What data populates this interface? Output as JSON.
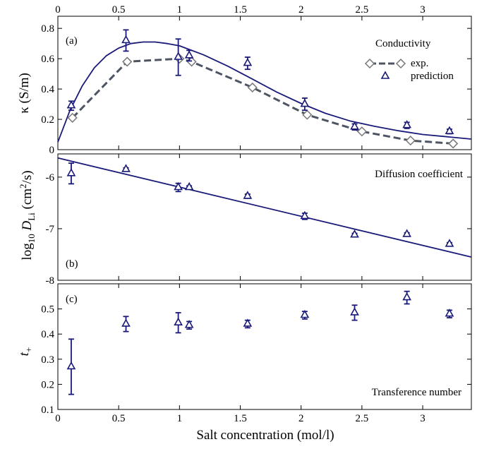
{
  "chart_data": [
    {
      "type": "line",
      "panel_label": "(a)",
      "ylabel": "κ (S/m)",
      "xlim": [
        0,
        3.4
      ],
      "ylim": [
        0,
        0.88
      ],
      "yticks": [
        "0",
        "0.2",
        "0.4",
        "0.6",
        "0.8"
      ],
      "top_xticks": [
        "0",
        "0.5",
        "1",
        "1.5",
        "2",
        "2.5",
        "3"
      ],
      "legend_title": "Conductivity",
      "legend_placement": "top-right",
      "series": [
        {
          "name": "exp.",
          "style": "dashed-diamond",
          "color": "#4d5563",
          "x": [
            0.12,
            0.57,
            1.0,
            1.1,
            1.6,
            2.05,
            2.5,
            2.9,
            3.25
          ],
          "y": [
            0.21,
            0.58,
            0.6,
            0.58,
            0.41,
            0.23,
            0.12,
            0.06,
            0.04
          ]
        },
        {
          "name": "prediction",
          "style": "triangle-errorbar",
          "color": "#1a1a78",
          "x": [
            0.11,
            0.56,
            0.99,
            1.08,
            1.56,
            2.03,
            2.44,
            2.87,
            3.22
          ],
          "y": [
            0.29,
            0.72,
            0.61,
            0.62,
            0.57,
            0.3,
            0.15,
            0.16,
            0.12
          ],
          "err": [
            0.03,
            0.07,
            0.12,
            0.035,
            0.04,
            0.04,
            0.02,
            0.02,
            0.015
          ]
        }
      ],
      "fit_curve": {
        "color": "#1a1a78",
        "x": [
          0,
          0.1,
          0.2,
          0.3,
          0.4,
          0.5,
          0.6,
          0.7,
          0.8,
          0.9,
          1.0,
          1.2,
          1.4,
          1.6,
          1.8,
          2.0,
          2.2,
          2.4,
          2.6,
          2.8,
          3.0,
          3.2,
          3.4
        ],
        "y": [
          0.05,
          0.26,
          0.42,
          0.54,
          0.62,
          0.67,
          0.7,
          0.71,
          0.71,
          0.7,
          0.685,
          0.625,
          0.55,
          0.465,
          0.38,
          0.305,
          0.24,
          0.19,
          0.155,
          0.125,
          0.1,
          0.085,
          0.07
        ]
      }
    },
    {
      "type": "line",
      "panel_label": "(b)",
      "ylabel": "log10 D_Li (cm2/s)",
      "annotation": "Diffusion coefficient",
      "xlim": [
        0,
        3.4
      ],
      "ylim": [
        -8,
        -5.55
      ],
      "yticks": [
        -6,
        -7,
        -8
      ],
      "series": [
        {
          "name": "",
          "style": "triangle-errorbar",
          "color": "#1a1a78",
          "x": [
            0.11,
            0.56,
            0.99,
            1.08,
            1.56,
            2.03,
            2.44,
            2.87,
            3.22
          ],
          "y": [
            -5.93,
            -5.85,
            -6.2,
            -6.2,
            -6.37,
            -6.76,
            -7.12,
            -7.11,
            -7.3
          ],
          "err": [
            0.2,
            0.03,
            0.08,
            0.03,
            0.04,
            0.06,
            0.03,
            0.03,
            0.03
          ]
        }
      ],
      "fit_line": {
        "color": "#1a1a78",
        "x": [
          0,
          3.4
        ],
        "y": [
          -5.63,
          -7.55
        ]
      }
    },
    {
      "type": "scatter",
      "panel_label": "(c)",
      "ylabel": "t+",
      "annotation": "Transference number",
      "xlim": [
        0,
        3.4
      ],
      "ylim": [
        0.1,
        0.6
      ],
      "yticks": [
        "0.1",
        "0.2",
        "0.3",
        "0.4",
        "0.5"
      ],
      "xlabel": "Salt concentration (mol/l)",
      "xticks": [
        "0",
        "0.5",
        "1",
        "1.5",
        "2",
        "2.5",
        "3"
      ],
      "series": [
        {
          "name": "",
          "style": "triangle-errorbar",
          "color": "#1a1a78",
          "x": [
            0.11,
            0.56,
            0.99,
            1.08,
            1.56,
            2.03,
            2.44,
            2.87,
            3.22
          ],
          "y": [
            0.27,
            0.44,
            0.445,
            0.435,
            0.44,
            0.475,
            0.485,
            0.545,
            0.48
          ],
          "err": [
            0.11,
            0.03,
            0.04,
            0.015,
            0.015,
            0.015,
            0.03,
            0.025,
            0.015
          ]
        }
      ]
    }
  ]
}
